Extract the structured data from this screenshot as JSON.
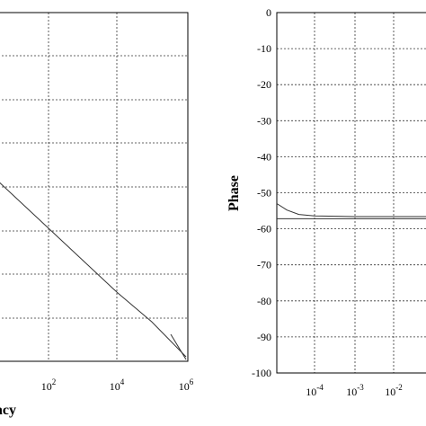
{
  "chart_data": [
    {
      "type": "line",
      "xlabel": "Frequency",
      "xlabel_visible": "ncy",
      "ylabel": "",
      "xscale": "log",
      "grid": true,
      "x_ticks": [
        {
          "exp": "2"
        },
        {
          "exp": "4"
        },
        {
          "exp": "6"
        }
      ],
      "tick_base": "10",
      "series": [
        {
          "x": [
            0.01,
            1,
            100,
            10000,
            100000,
            1000000
          ],
          "y": [
            0.5,
            0.35,
            -0.2,
            -0.75,
            -1.0,
            -1.3
          ]
        }
      ]
    },
    {
      "type": "line",
      "xlabel": "",
      "ylabel": "Phase",
      "xscale": "log",
      "grid": true,
      "ylim": [
        -100,
        0
      ],
      "y_ticks": [
        "0",
        "-10",
        "-20",
        "-30",
        "-40",
        "-50",
        "-60",
        "-70",
        "-80",
        "-90",
        "-100"
      ],
      "x_ticks": [
        {
          "exp": "-4"
        },
        {
          "exp": "-3"
        },
        {
          "exp": "-2"
        }
      ],
      "tick_base": "10",
      "series": [
        {
          "x": [
            1e-05,
            2e-05,
            4e-05,
            0.0001,
            0.001,
            0.01,
            0.1
          ],
          "y": [
            -53,
            -54.8,
            -56,
            -56.4,
            -56.6,
            -56.6,
            -56.6
          ]
        }
      ]
    }
  ]
}
